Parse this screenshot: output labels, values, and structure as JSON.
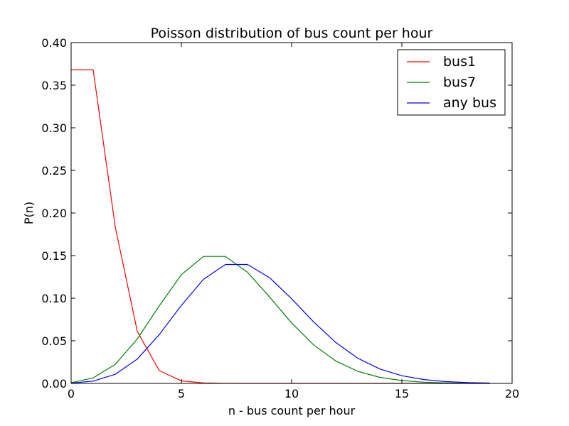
{
  "chart_data": {
    "type": "line",
    "title": "Poisson distribution of bus count per hour",
    "xlabel": "n - bus count per hour",
    "ylabel": "P(n)",
    "xlim": [
      0,
      20
    ],
    "ylim": [
      0,
      0.4
    ],
    "grid": false,
    "legend_position": "top-right",
    "x_ticks": [
      {
        "value": 0,
        "label": "0"
      },
      {
        "value": 5,
        "label": "5"
      },
      {
        "value": 10,
        "label": "10"
      },
      {
        "value": 15,
        "label": "15"
      },
      {
        "value": 20,
        "label": "20"
      }
    ],
    "y_ticks": [
      {
        "value": 0,
        "label": "0.00"
      },
      {
        "value": 0.05,
        "label": "0.05"
      },
      {
        "value": 0.1,
        "label": "0.10"
      },
      {
        "value": 0.15,
        "label": "0.15"
      },
      {
        "value": 0.2,
        "label": "0.20"
      },
      {
        "value": 0.25,
        "label": "0.25"
      },
      {
        "value": 0.3,
        "label": "0.30"
      },
      {
        "value": 0.35,
        "label": "0.35"
      },
      {
        "value": 0.4,
        "label": "0.40"
      }
    ],
    "x": [
      0,
      1,
      2,
      3,
      4,
      5,
      6,
      7,
      8,
      9,
      10,
      11,
      12,
      13,
      14,
      15,
      16,
      17,
      18,
      19
    ],
    "series": [
      {
        "name": "bus1",
        "color": "#ff0000",
        "values": [
          0.368,
          0.368,
          0.184,
          0.061,
          0.015,
          0.003,
          0.0005,
          0.0001,
          0,
          0,
          0,
          0,
          0,
          0,
          0,
          0,
          0,
          0,
          0,
          0
        ]
      },
      {
        "name": "bus7",
        "color": "#008000",
        "values": [
          0.0009,
          0.0064,
          0.0223,
          0.0521,
          0.0912,
          0.1277,
          0.149,
          0.149,
          0.1304,
          0.1014,
          0.071,
          0.0452,
          0.0263,
          0.0142,
          0.0071,
          0.0033,
          0.0014,
          0.0006,
          0.0002,
          0.0001
        ]
      },
      {
        "name": "any bus",
        "color": "#0000ff",
        "values": [
          0.0003,
          0.0027,
          0.0107,
          0.0286,
          0.0573,
          0.0916,
          0.1221,
          0.1396,
          0.1396,
          0.1241,
          0.0993,
          0.0722,
          0.0481,
          0.0296,
          0.0169,
          0.009,
          0.0045,
          0.0021,
          0.0009,
          0.0004
        ]
      }
    ]
  }
}
